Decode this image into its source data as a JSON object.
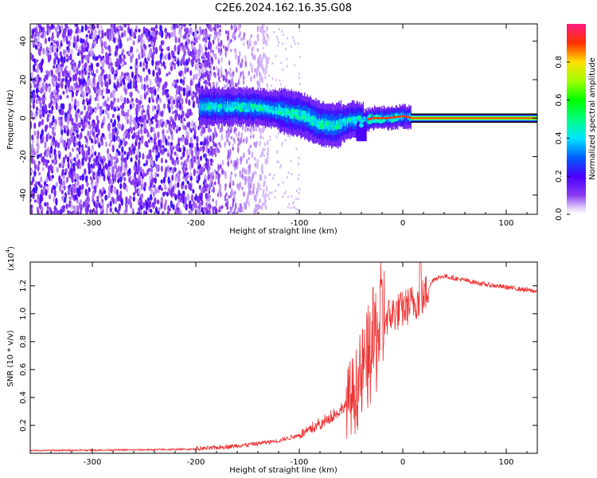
{
  "title": "C2E6.2024.162.16.35.G08",
  "chart_data": [
    {
      "type": "heatmap",
      "xlabel": "Height of straight line (km)",
      "ylabel": "Frequency (Hz)",
      "xlim": [
        -360,
        130
      ],
      "ylim": [
        -50,
        49
      ],
      "xticks": [
        "-300",
        "-200",
        "-100",
        "0",
        "100"
      ],
      "yticks": [
        "-40",
        "-20",
        "0",
        "20",
        "40"
      ],
      "colorbar": {
        "label": "Normalized spectral amplitude",
        "ticks": [
          "0.0",
          "0.2",
          "0.4",
          "0.6",
          "0.8"
        ],
        "range": [
          0,
          1
        ]
      },
      "signal_track": [
        {
          "x": -195,
          "f": 6
        },
        {
          "x": -170,
          "f": 6
        },
        {
          "x": -150,
          "f": 6
        },
        {
          "x": -130,
          "f": 5
        },
        {
          "x": -110,
          "f": 3
        },
        {
          "x": -95,
          "f": 1
        },
        {
          "x": -80,
          "f": -3
        },
        {
          "x": -65,
          "f": -4
        },
        {
          "x": -50,
          "f": -1
        },
        {
          "x": -38,
          "f": -2
        },
        {
          "x": -30,
          "f": 0
        },
        {
          "x": -15,
          "f": 0
        },
        {
          "x": 0,
          "f": 1
        },
        {
          "x": 10,
          "f": 0
        },
        {
          "x": 130,
          "f": 0
        }
      ]
    },
    {
      "type": "line",
      "xlabel": "Height of straight line (km)",
      "ylabel": "SNR (10 * v/v)",
      "yscale_label": "(x10",
      "yscale_exp": "4",
      "yscale_close": ")",
      "xlim": [
        -360,
        130
      ],
      "ylim": [
        0,
        1.37
      ],
      "xticks": [
        "-300",
        "-200",
        "-100",
        "0",
        "100"
      ],
      "yticks": [
        "0.2",
        "0.4",
        "0.6",
        "0.8",
        "1.0",
        "1.2"
      ],
      "color": "#ee3333",
      "trend": [
        {
          "x": -360,
          "y": 0.02
        },
        {
          "x": -250,
          "y": 0.025
        },
        {
          "x": -200,
          "y": 0.03
        },
        {
          "x": -180,
          "y": 0.04
        },
        {
          "x": -150,
          "y": 0.06
        },
        {
          "x": -120,
          "y": 0.09
        },
        {
          "x": -100,
          "y": 0.13
        },
        {
          "x": -80,
          "y": 0.2
        },
        {
          "x": -60,
          "y": 0.3
        },
        {
          "x": -45,
          "y": 0.45
        },
        {
          "x": -35,
          "y": 0.65
        },
        {
          "x": -25,
          "y": 0.85
        },
        {
          "x": -20,
          "y": 0.95
        },
        {
          "x": -10,
          "y": 1.0
        },
        {
          "x": 0,
          "y": 1.03
        },
        {
          "x": 10,
          "y": 1.08
        },
        {
          "x": 20,
          "y": 1.12
        },
        {
          "x": 30,
          "y": 1.25
        },
        {
          "x": 40,
          "y": 1.27
        },
        {
          "x": 60,
          "y": 1.24
        },
        {
          "x": 80,
          "y": 1.21
        },
        {
          "x": 100,
          "y": 1.19
        },
        {
          "x": 130,
          "y": 1.16
        }
      ]
    }
  ]
}
